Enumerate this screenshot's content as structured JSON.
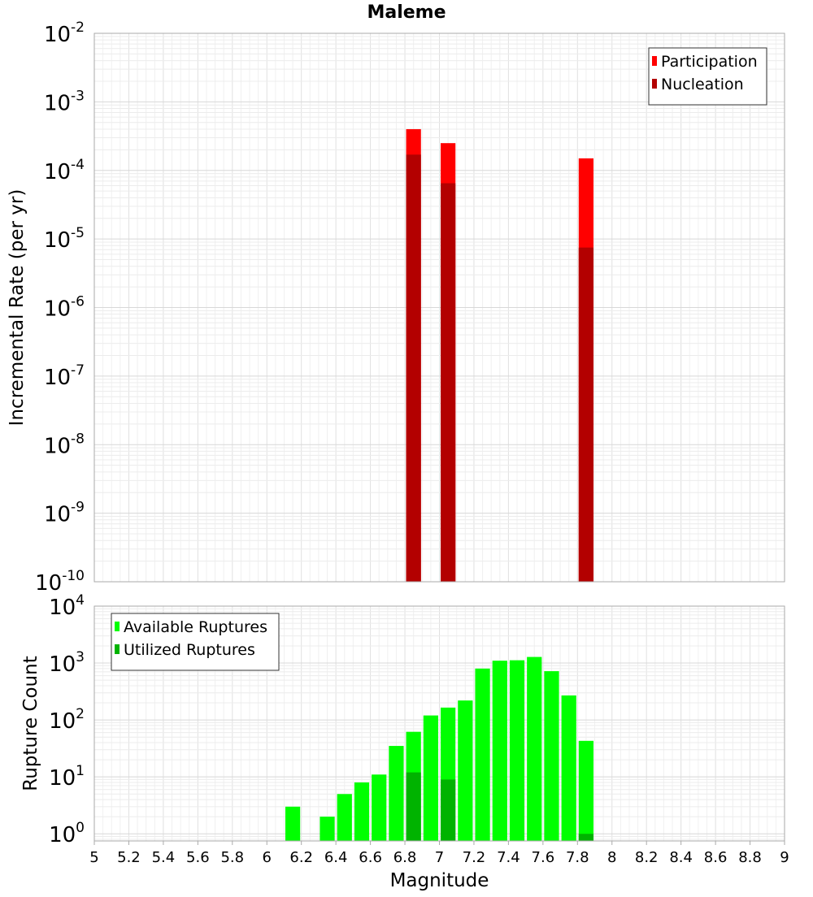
{
  "title": "Maleme",
  "chart_data": [
    {
      "type": "bar",
      "scale": "log",
      "ylabel": "Incremental Rate (per yr)",
      "xlim": [
        5,
        9
      ],
      "ylim": [
        1e-10,
        0.01
      ],
      "ytick_exponents": [
        "-10",
        "-9",
        "-8",
        "-7",
        "-6",
        "-5",
        "-4",
        "-3",
        "-2"
      ],
      "bin_width": 0.1,
      "grid": true,
      "legend": {
        "position": "top-right",
        "entries": [
          "Participation",
          "Nucleation"
        ]
      },
      "colors": {
        "Participation": "#ff0000",
        "Nucleation": "#b30000"
      },
      "series": [
        {
          "name": "Participation",
          "x": [
            6.85,
            7.05,
            7.85
          ],
          "values": [
            0.0004,
            0.00025,
            0.00015
          ]
        },
        {
          "name": "Nucleation",
          "x": [
            6.85,
            7.05,
            7.85
          ],
          "values": [
            0.00017,
            6.5e-05,
            7.5e-06
          ]
        }
      ]
    },
    {
      "type": "bar",
      "scale": "log",
      "xlabel": "Magnitude",
      "ylabel": "Rupture Count",
      "xlim": [
        5,
        9
      ],
      "ylim": [
        0.75,
        10000
      ],
      "ytick_exponents": [
        "0",
        "1",
        "2",
        "3",
        "4"
      ],
      "xticks": [
        "5",
        "5.2",
        "5.4",
        "5.6",
        "5.8",
        "6",
        "6.2",
        "6.4",
        "6.6",
        "6.8",
        "7",
        "7.2",
        "7.4",
        "7.6",
        "7.8",
        "8",
        "8.2",
        "8.4",
        "8.6",
        "8.8",
        "9"
      ],
      "bin_width": 0.1,
      "grid": true,
      "legend": {
        "position": "top-left",
        "entries": [
          "Available Ruptures",
          "Utilized Ruptures"
        ]
      },
      "colors": {
        "Available Ruptures": "#00ff00",
        "Utilized Ruptures": "#00b300"
      },
      "series": [
        {
          "name": "Available Ruptures",
          "x": [
            6.15,
            6.35,
            6.45,
            6.55,
            6.65,
            6.75,
            6.85,
            6.95,
            7.05,
            7.15,
            7.25,
            7.35,
            7.45,
            7.55,
            7.65,
            7.75,
            7.85
          ],
          "values": [
            3,
            2,
            5,
            8,
            11,
            35,
            62,
            120,
            165,
            220,
            800,
            1100,
            1120,
            1280,
            720,
            270,
            43
          ]
        },
        {
          "name": "Utilized Ruptures",
          "x": [
            6.85,
            7.05,
            7.85
          ],
          "values": [
            12,
            9,
            1
          ]
        }
      ]
    }
  ]
}
